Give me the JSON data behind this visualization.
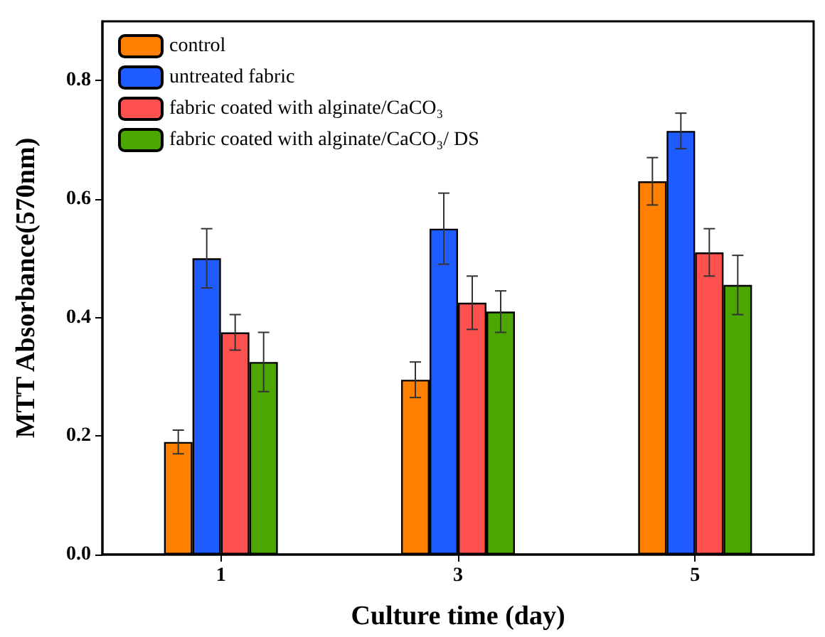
{
  "chart_data": {
    "type": "bar",
    "xlabel": "Culture time (day)",
    "ylabel": "MTT Absorbance(570nm)",
    "categories": [
      "1",
      "3",
      "5"
    ],
    "series": [
      {
        "name": "control",
        "color": "#ff8000",
        "values": [
          0.19,
          0.295,
          0.63
        ],
        "errors": [
          0.02,
          0.03,
          0.04
        ]
      },
      {
        "name": "untreated fabric",
        "color": "#1f5cff",
        "values": [
          0.5,
          0.55,
          0.715
        ],
        "errors": [
          0.05,
          0.06,
          0.03
        ]
      },
      {
        "name": "fabric coated with alginate/CaCO₃",
        "color": "#ff5050",
        "values": [
          0.375,
          0.425,
          0.51
        ],
        "errors": [
          0.03,
          0.045,
          0.04
        ]
      },
      {
        "name": "fabric coated with alginate/CaCO₃/ DS",
        "color": "#4ca600",
        "values": [
          0.325,
          0.41,
          0.455
        ],
        "errors": [
          0.05,
          0.035,
          0.05
        ]
      }
    ],
    "ylim": [
      0,
      0.9
    ],
    "yticks": [
      {
        "value": 0,
        "label": "0.0"
      },
      {
        "value": 0.2,
        "label": "0.2"
      },
      {
        "value": 0.4,
        "label": "0.4"
      },
      {
        "value": 0.6,
        "label": "0.6"
      },
      {
        "value": 0.8,
        "label": "0.8"
      }
    ],
    "grid": false,
    "legend": "top left"
  }
}
